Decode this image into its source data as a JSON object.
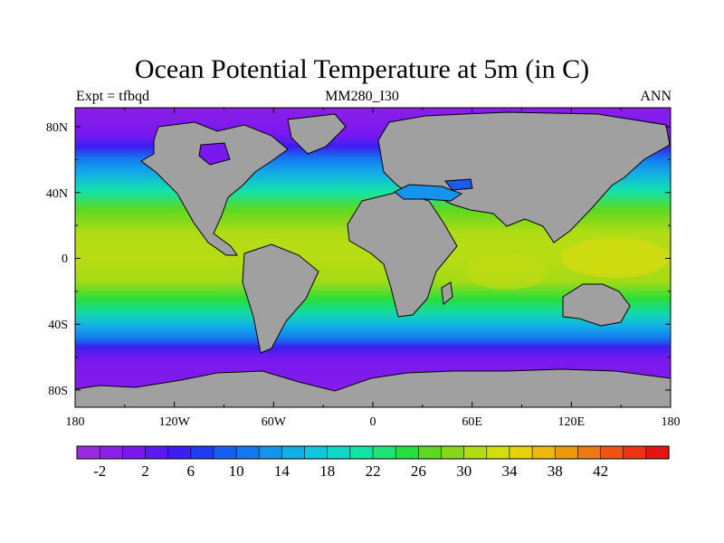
{
  "title": "Ocean Potential Temperature at 5m (in C)",
  "left_string": "Expt = tfbqd",
  "center_string": "MM280_I30",
  "right_string": "ANN",
  "lon_labels": [
    "180",
    "120W",
    "60W",
    "0",
    "60E",
    "120E",
    "180"
  ],
  "lat_labels": [
    "80N",
    "40N",
    "0",
    "40S",
    "80S"
  ],
  "colorbar": {
    "labels": [
      "-2",
      "2",
      "6",
      "10",
      "14",
      "18",
      "22",
      "26",
      "30",
      "34",
      "38",
      "42"
    ],
    "colors": [
      "#9a2be0",
      "#8a1fe8",
      "#7a18f0",
      "#5c1af2",
      "#3c1ff0",
      "#1f3cf2",
      "#165ef2",
      "#1478f0",
      "#1494ec",
      "#12aee6",
      "#14c6dc",
      "#10d8c8",
      "#12e4a8",
      "#1ee47a",
      "#28de3c",
      "#5ed820",
      "#86d818",
      "#b2dc14",
      "#d2dc10",
      "#e6d20c",
      "#ecb80c",
      "#ec9a0c",
      "#ec7a0e",
      "#ec5610",
      "#ec3414",
      "#e41414"
    ]
  },
  "colors": {
    "land": "#a0a0a0",
    "coast": "#000000"
  }
}
